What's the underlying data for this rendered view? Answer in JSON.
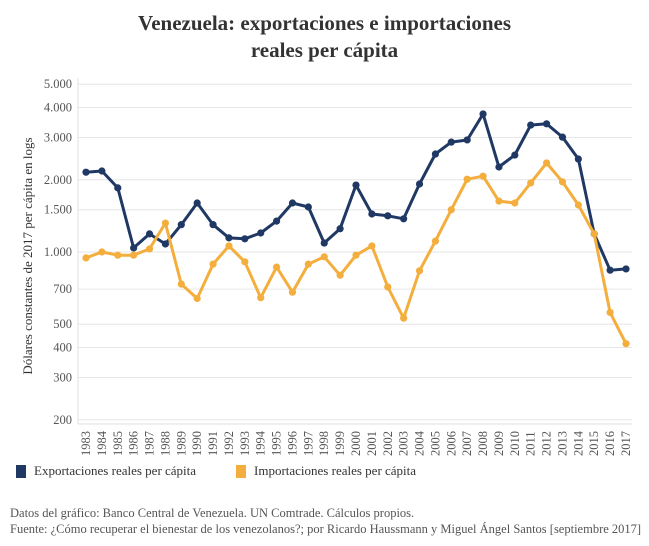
{
  "colors": {
    "exports": "#1f3864",
    "imports": "#f4ae3d",
    "grid": "#e6e6e6",
    "axis": "#dde3ea"
  },
  "chart_data": {
    "type": "line",
    "title": "Venezuela: exportaciones e importaciones reales per cápita",
    "title_lines": [
      "Venezuela: exportaciones e importaciones",
      "reales per cápita"
    ],
    "xlabel": "",
    "ylabel": "Dólares constantes de 2017 per cápita en logs",
    "yscale": "log",
    "ylim": [
      180,
      5000
    ],
    "grid": true,
    "legend_position": "bottom-left",
    "y_ticks": [
      200,
      300,
      400,
      500,
      700,
      1000,
      1500,
      2000,
      3000,
      4000,
      5000
    ],
    "y_tick_labels": [
      "200",
      "300",
      "400",
      "500",
      "700",
      "1.000",
      "1.500",
      "2.000",
      "3.000",
      "4.000",
      "5.000"
    ],
    "x": [
      "1983",
      "1984",
      "1985",
      "1986",
      "1987",
      "1988",
      "1989",
      "1990",
      "1991",
      "1992",
      "1993",
      "1994",
      "1995",
      "1996",
      "1997",
      "1998",
      "1999",
      "2000",
      "2001",
      "2002",
      "2003",
      "2004",
      "2005",
      "2006",
      "2007",
      "2008",
      "2009",
      "2010",
      "2011",
      "2012",
      "2013",
      "2014",
      "2015",
      "2016",
      "2017"
    ],
    "series": [
      {
        "name": "Exportaciones reales per cápita",
        "key": "exports",
        "values": [
          2150,
          2175,
          1850,
          1040,
          1190,
          1080,
          1300,
          1600,
          1300,
          1145,
          1135,
          1200,
          1345,
          1600,
          1540,
          1090,
          1250,
          1900,
          1440,
          1415,
          1375,
          1920,
          2560,
          2870,
          2930,
          3760,
          2260,
          2535,
          3380,
          3420,
          3010,
          2440,
          1190,
          840,
          850
        ]
      },
      {
        "name": "Importaciones reales per cápita",
        "key": "imports",
        "values": [
          945,
          1000,
          970,
          970,
          1030,
          1320,
          735,
          640,
          890,
          1060,
          910,
          645,
          865,
          680,
          890,
          955,
          800,
          970,
          1060,
          715,
          530,
          835,
          1110,
          1500,
          2010,
          2070,
          1630,
          1600,
          1940,
          2350,
          1960,
          1570,
          1190,
          560,
          415
        ]
      }
    ]
  },
  "legend": {
    "exports_label": "Exportaciones reales per cápita",
    "imports_label": "Importaciones reales per cápita"
  },
  "footer": {
    "line1": "Datos del gráfico: Banco Central de Venezuela. UN Comtrade. Cálculos propios.",
    "line2": "Fuente: ¿Cómo recuperar el bienestar de los venezolanos?; por Ricardo Haussmann y Miguel Ángel Santos [septiembre 2017]"
  }
}
